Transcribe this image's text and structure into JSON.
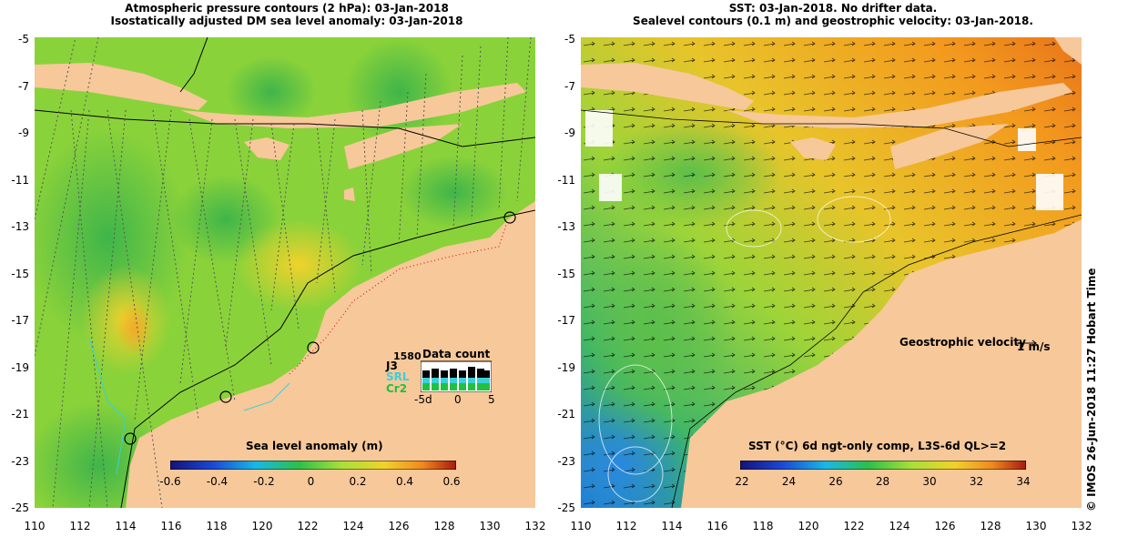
{
  "left_panel": {
    "title_line1": "Atmospheric pressure contours (2 hPa): 03-Jan-2018",
    "title_line2": "Isostatically adjusted DM sea level anomaly: 03-Jan-2018",
    "colorbar_title": "Sea level anomaly (m)",
    "colorbar_ticks": [
      "-0.6",
      "-0.4",
      "-0.2",
      "0",
      "0.2",
      "0.4",
      "0.6"
    ],
    "data_count_title": "Data count",
    "data_count_labels": [
      "1580",
      "J3",
      "SRL",
      "Cr2"
    ],
    "data_count_axis": [
      "-5d",
      "0",
      "5"
    ]
  },
  "right_panel": {
    "title_line1": "SST: 03-Jan-2018. No drifter data.",
    "title_line2": "Sealevel contours (0.1 m) and geostrophic velocity: 03-Jan-2018.",
    "colorbar_title": "SST (°C) 6d ngt-only comp, L3S-6d QL>=2",
    "colorbar_ticks": [
      "22",
      "24",
      "26",
      "28",
      "30",
      "32",
      "34"
    ],
    "velocity_label": "Geostrophic velocity",
    "velocity_scale": "1 m/s"
  },
  "axes": {
    "y_ticks": [
      "-5",
      "-7",
      "-9",
      "-11",
      "-13",
      "-15",
      "-17",
      "-19",
      "-21",
      "-23",
      "-25"
    ],
    "x_ticks": [
      "110",
      "112",
      "114",
      "116",
      "118",
      "120",
      "122",
      "124",
      "126",
      "128",
      "130",
      "132"
    ]
  },
  "footer": {
    "credit": "© IMOS 26-Jun-2018 11:27 Hobart Time"
  },
  "colors": {
    "land": "#f7c89a",
    "sla_mid": "#8ad23a",
    "sst_warm": "#f5a020",
    "sst_cool": "#3a9ad8"
  }
}
